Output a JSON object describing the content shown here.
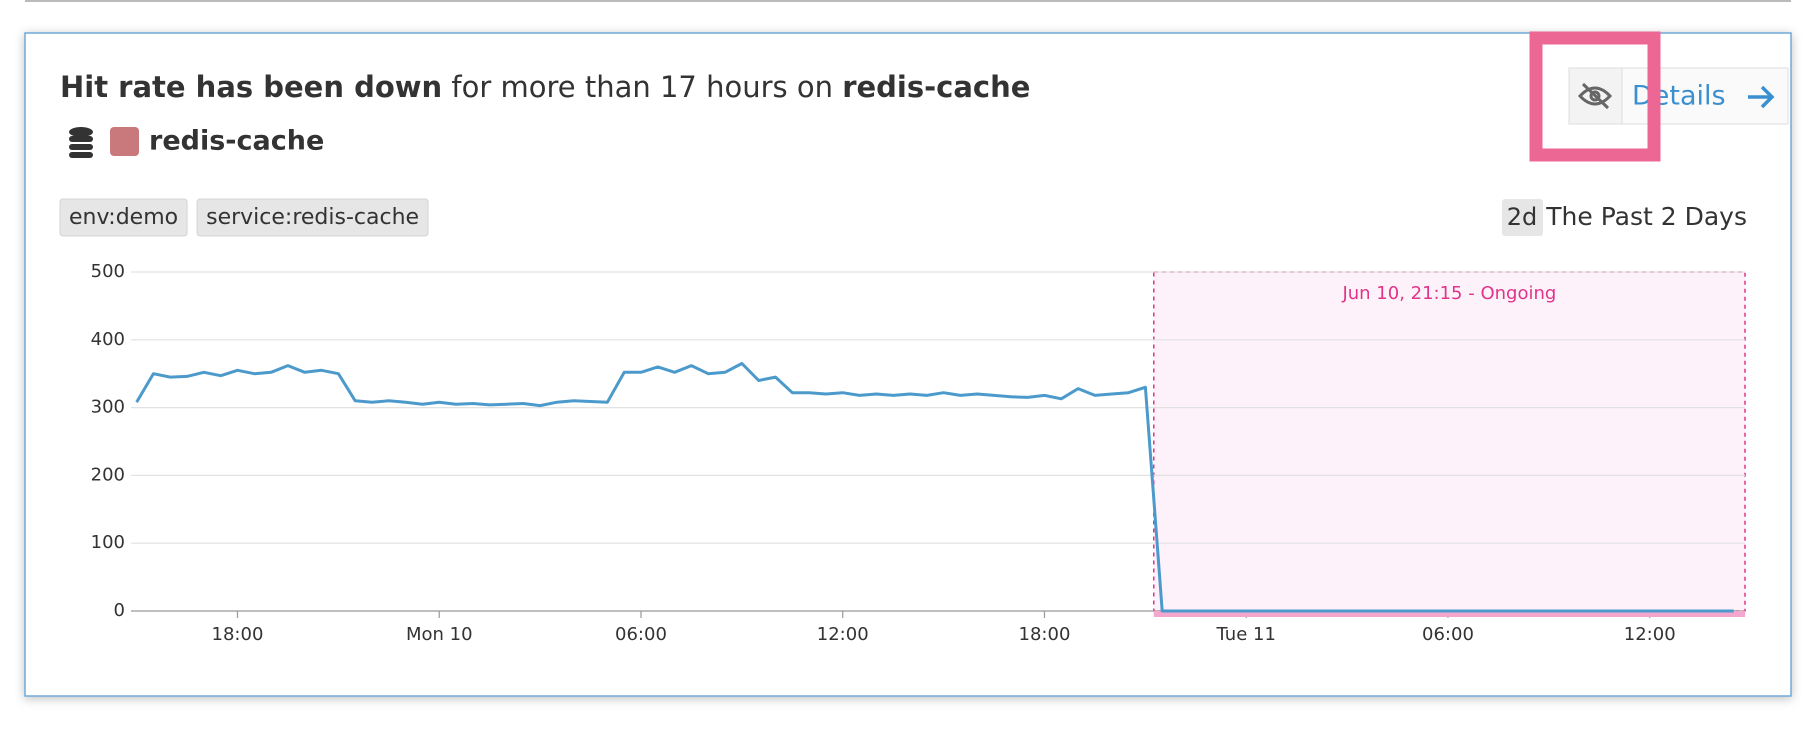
{
  "header": {
    "title_bold": "Hit rate has been down",
    "title_middle": " for more than 17 hours on ",
    "title_entity": "redis-cache"
  },
  "entity": {
    "name": "redis-cache",
    "color": "#c9787c"
  },
  "tags": [
    "env:demo",
    "service:redis-cache"
  ],
  "timeframe": {
    "badge": "2d",
    "label": "The Past 2 Days"
  },
  "details_button": "Details",
  "chart_data": {
    "type": "line",
    "color": "#4c9acb",
    "grid": true,
    "x": [
      "Jun 09 15:00",
      "Jun 09 15:30",
      "Jun 09 16:00",
      "Jun 09 16:30",
      "Jun 09 17:00",
      "Jun 09 17:30",
      "Jun 09 18:00",
      "Jun 09 18:30",
      "Jun 09 19:00",
      "Jun 09 19:30",
      "Jun 09 20:00",
      "Jun 09 20:30",
      "Jun 09 21:00",
      "Jun 09 21:30",
      "Jun 09 22:00",
      "Jun 09 22:30",
      "Jun 09 23:00",
      "Jun 09 23:30",
      "Jun 10 00:00",
      "Jun 10 00:30",
      "Jun 10 01:00",
      "Jun 10 01:30",
      "Jun 10 02:00",
      "Jun 10 02:30",
      "Jun 10 03:00",
      "Jun 10 03:30",
      "Jun 10 04:00",
      "Jun 10 04:30",
      "Jun 10 05:00",
      "Jun 10 05:30",
      "Jun 10 06:00",
      "Jun 10 06:30",
      "Jun 10 07:00",
      "Jun 10 07:30",
      "Jun 10 08:00",
      "Jun 10 08:30",
      "Jun 10 09:00",
      "Jun 10 09:30",
      "Jun 10 10:00",
      "Jun 10 10:30",
      "Jun 10 11:00",
      "Jun 10 11:30",
      "Jun 10 12:00",
      "Jun 10 12:30",
      "Jun 10 13:00",
      "Jun 10 13:30",
      "Jun 10 14:00",
      "Jun 10 14:30",
      "Jun 10 15:00",
      "Jun 10 15:30",
      "Jun 10 16:00",
      "Jun 10 16:30",
      "Jun 10 17:00",
      "Jun 10 17:30",
      "Jun 10 18:00",
      "Jun 10 18:30",
      "Jun 10 19:00",
      "Jun 10 19:30",
      "Jun 10 20:00",
      "Jun 10 20:30",
      "Jun 10 21:00",
      "Jun 10 21:30",
      "Jun 10 22:00",
      "Jun 10 22:30",
      "Jun 10 23:00",
      "Jun 10 23:30",
      "Jun 11 00:00",
      "Jun 11 00:30",
      "Jun 11 01:00",
      "Jun 11 01:30",
      "Jun 11 02:00",
      "Jun 11 02:30",
      "Jun 11 03:00",
      "Jun 11 03:30",
      "Jun 11 04:00",
      "Jun 11 04:30",
      "Jun 11 05:00",
      "Jun 11 05:30",
      "Jun 11 06:00",
      "Jun 11 06:30",
      "Jun 11 07:00",
      "Jun 11 07:30",
      "Jun 11 08:00",
      "Jun 11 08:30",
      "Jun 11 09:00",
      "Jun 11 09:30",
      "Jun 11 10:00",
      "Jun 11 10:30",
      "Jun 11 11:00",
      "Jun 11 11:30",
      "Jun 11 12:00",
      "Jun 11 12:30",
      "Jun 11 13:00",
      "Jun 11 13:30",
      "Jun 11 14:00",
      "Jun 11 14:30"
    ],
    "values": [
      308,
      350,
      345,
      346,
      352,
      347,
      355,
      350,
      352,
      362,
      352,
      355,
      350,
      310,
      308,
      310,
      308,
      305,
      308,
      305,
      306,
      304,
      305,
      306,
      303,
      308,
      310,
      309,
      308,
      352,
      352,
      360,
      352,
      362,
      350,
      352,
      365,
      340,
      345,
      322,
      322,
      320,
      322,
      318,
      320,
      318,
      320,
      318,
      322,
      318,
      320,
      318,
      316,
      315,
      318,
      313,
      328,
      318,
      320,
      322,
      330,
      0,
      0,
      0,
      0,
      0,
      0,
      0,
      0,
      0,
      0,
      0,
      0,
      0,
      0,
      0,
      0,
      0,
      0,
      0,
      0,
      0,
      0,
      0,
      0,
      0,
      0,
      0,
      0,
      0,
      0,
      0,
      0,
      0,
      0,
      0
    ],
    "xlim": [
      "Jun 09 14:50",
      "Jun 11 14:50"
    ],
    "xticks": [
      {
        "value": "Jun 09 18:00",
        "label": "18:00"
      },
      {
        "value": "Jun 10 00:00",
        "label": "Mon 10"
      },
      {
        "value": "Jun 10 06:00",
        "label": "06:00"
      },
      {
        "value": "Jun 10 12:00",
        "label": "12:00"
      },
      {
        "value": "Jun 10 18:00",
        "label": "18:00"
      },
      {
        "value": "Jun 11 00:00",
        "label": "Tue 11"
      },
      {
        "value": "Jun 11 06:00",
        "label": "06:00"
      },
      {
        "value": "Jun 11 12:00",
        "label": "12:00"
      }
    ],
    "ylim": [
      0,
      500
    ],
    "yticks": [
      0,
      100,
      200,
      300,
      400,
      500
    ],
    "annotation": {
      "text": "Jun 10, 21:15 - Ongoing",
      "start": "Jun 10 21:15",
      "color": "#e0348a"
    }
  }
}
